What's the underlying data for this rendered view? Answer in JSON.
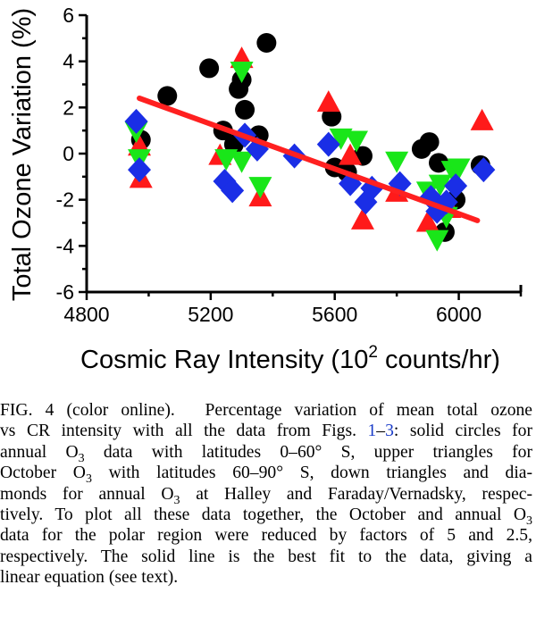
{
  "chart_data": {
    "type": "scatter",
    "xlabel": "Cosmic Ray Intensity (10",
    "xlabel_sup": "2",
    "xlabel_tail": " counts/hr)",
    "ylabel": "Total Ozone Variation (%)",
    "xlim": [
      4800,
      6200
    ],
    "ylim": [
      -6,
      6
    ],
    "x_ticks": [
      "4800",
      "5200",
      "5600",
      "6000"
    ],
    "y_ticks": [
      "6",
      "4",
      "2",
      "0",
      "-2",
      "-4",
      "-6"
    ],
    "grid": false,
    "colors": {
      "circles": "#000000",
      "up_triangles": "#ff1a1a",
      "down_triangles": "#19e619",
      "diamonds": "#1a2ee6",
      "fit": "#ff2020"
    },
    "fit_line": {
      "x": [
        4970,
        6060
      ],
      "y": [
        2.4,
        -2.9
      ]
    },
    "series": [
      {
        "marker": "circle",
        "points": [
          [
            4975,
            0.6
          ],
          [
            5060,
            2.5
          ],
          [
            5195,
            3.7
          ],
          [
            5240,
            1.0
          ],
          [
            5275,
            0.4
          ],
          [
            5290,
            2.8
          ],
          [
            5300,
            3.2
          ],
          [
            5310,
            1.9
          ],
          [
            5355,
            0.8
          ],
          [
            5380,
            4.8
          ],
          [
            5590,
            1.6
          ],
          [
            5600,
            -0.6
          ],
          [
            5640,
            -0.8
          ],
          [
            5690,
            -0.1
          ],
          [
            5880,
            0.2
          ],
          [
            5905,
            0.5
          ],
          [
            5935,
            -0.4
          ],
          [
            5955,
            -3.4
          ],
          [
            5990,
            -2.0
          ],
          [
            6070,
            -0.5
          ]
        ]
      },
      {
        "marker": "triangle-up",
        "points": [
          [
            4970,
            0.3
          ],
          [
            4975,
            -1.1
          ],
          [
            5230,
            -0.1
          ],
          [
            5300,
            4.1
          ],
          [
            5360,
            -1.9
          ],
          [
            5580,
            2.2
          ],
          [
            5650,
            -0.1
          ],
          [
            5690,
            -2.9
          ],
          [
            5800,
            -1.7
          ],
          [
            5900,
            -3.0
          ],
          [
            5970,
            -2.4
          ],
          [
            6075,
            1.4
          ]
        ]
      },
      {
        "marker": "triangle-down",
        "points": [
          [
            4960,
            1.0
          ],
          [
            4970,
            -0.2
          ],
          [
            5250,
            -0.2
          ],
          [
            5300,
            -0.3
          ],
          [
            5300,
            3.6
          ],
          [
            5360,
            -1.4
          ],
          [
            5620,
            0.7
          ],
          [
            5670,
            0.6
          ],
          [
            5800,
            -0.3
          ],
          [
            5900,
            -1.6
          ],
          [
            5930,
            -3.7
          ],
          [
            5940,
            -1.3
          ],
          [
            5960,
            -2.7
          ],
          [
            5980,
            -0.7
          ],
          [
            6000,
            -0.6
          ]
        ]
      },
      {
        "marker": "diamond",
        "points": [
          [
            4960,
            1.4
          ],
          [
            4970,
            -0.7
          ],
          [
            5245,
            -1.2
          ],
          [
            5270,
            -1.6
          ],
          [
            5310,
            0.8
          ],
          [
            5350,
            0.2
          ],
          [
            5470,
            -0.1
          ],
          [
            5580,
            0.4
          ],
          [
            5650,
            -1.3
          ],
          [
            5700,
            -2.1
          ],
          [
            5720,
            -1.5
          ],
          [
            5810,
            -1.3
          ],
          [
            5910,
            -1.9
          ],
          [
            5930,
            -2.5
          ],
          [
            5960,
            -2.1
          ],
          [
            5990,
            -1.4
          ],
          [
            6080,
            -0.7
          ]
        ]
      }
    ]
  },
  "caption": {
    "lines": [
      {
        "parts": [
          {
            "t": "FIG. 4 (color online).  Percentage variation of mean total ozone"
          }
        ]
      },
      {
        "parts": [
          {
            "t": "vs CR intensity with all the data from Figs. "
          },
          {
            "t": "1",
            "ref": true
          },
          {
            "t": "–"
          },
          {
            "t": "3",
            "ref": true
          },
          {
            "t": ": solid circles for"
          }
        ]
      },
      {
        "parts": [
          {
            "t": "annual O"
          },
          {
            "t": "3",
            "sub": true
          },
          {
            "t": " data with latitudes 0–60° S, upper triangles for"
          }
        ]
      },
      {
        "parts": [
          {
            "t": "October O"
          },
          {
            "t": "3",
            "sub": true
          },
          {
            "t": " with latitudes 60–90° S, down triangles and dia-"
          }
        ]
      },
      {
        "parts": [
          {
            "t": "monds for annual O"
          },
          {
            "t": "3",
            "sub": true
          },
          {
            "t": " at Halley and Faraday/Vernadsky, respec-"
          }
        ]
      },
      {
        "parts": [
          {
            "t": "tively. To plot all these data together, the October and annual O"
          },
          {
            "t": "3",
            "sub": true
          }
        ]
      },
      {
        "parts": [
          {
            "t": "data for the polar region were reduced by factors of 5 and 2.5,"
          }
        ]
      },
      {
        "parts": [
          {
            "t": "respectively. The solid line is the best fit to the data, giving a"
          }
        ]
      },
      {
        "last": true,
        "parts": [
          {
            "t": "linear equation (see text)."
          }
        ]
      }
    ]
  }
}
